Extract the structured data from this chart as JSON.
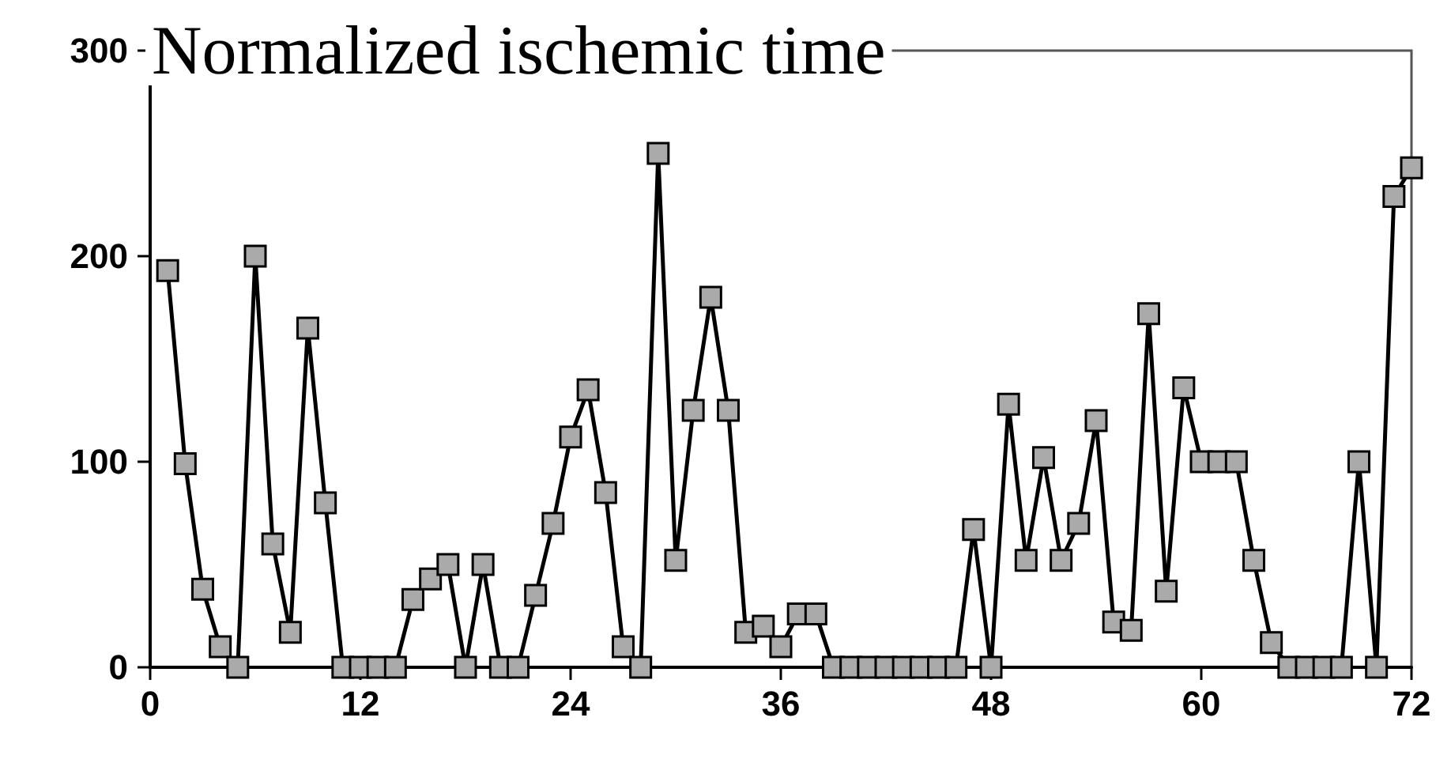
{
  "chart_data": {
    "type": "line",
    "title": "Normalized ischemic time",
    "x": [
      1,
      2,
      3,
      4,
      5,
      6,
      7,
      8,
      9,
      10,
      11,
      12,
      13,
      14,
      15,
      16,
      17,
      18,
      19,
      20,
      21,
      22,
      23,
      24,
      25,
      26,
      27,
      28,
      29,
      30,
      31,
      32,
      33,
      34,
      35,
      36,
      37,
      38,
      39,
      40,
      41,
      42,
      43,
      44,
      45,
      46,
      47,
      48,
      49,
      50,
      51,
      52,
      53,
      54,
      55,
      56,
      57,
      58,
      59,
      60,
      61,
      62,
      63,
      64,
      65,
      66,
      67,
      68,
      69,
      70,
      71,
      72
    ],
    "series": [
      {
        "color": "#000000",
        "values": [
          193,
          99,
          38,
          10,
          0,
          200,
          60,
          17,
          165,
          80,
          0,
          0,
          0,
          0,
          33,
          43,
          50,
          0,
          50,
          0,
          0,
          35,
          70,
          112,
          135,
          85,
          10,
          0,
          250,
          52,
          125,
          180,
          125,
          17,
          20,
          10,
          26,
          26,
          0,
          0,
          0,
          0,
          0,
          0,
          0,
          0,
          67,
          0,
          128,
          52,
          102,
          52,
          70,
          120,
          22,
          18,
          172,
          37,
          136,
          100,
          100,
          100,
          52,
          12,
          0,
          0,
          0,
          0,
          100,
          0,
          229,
          243
        ]
      }
    ],
    "xlim": [
      0,
      72
    ],
    "xticks": [
      0,
      12,
      24,
      36,
      48,
      60,
      72
    ],
    "ylim": [
      0,
      300
    ],
    "yticks": [
      0,
      100,
      200,
      300
    ],
    "grid": false,
    "marker": "square",
    "line_style": "solid"
  }
}
